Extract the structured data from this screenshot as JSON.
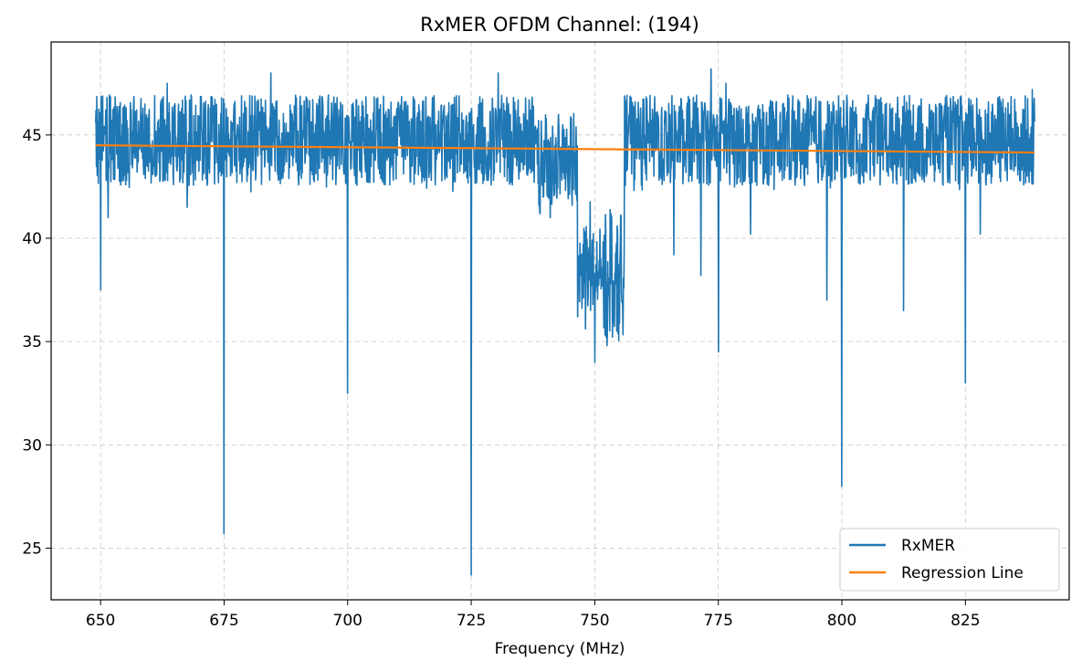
{
  "chart_data": {
    "type": "line",
    "title": "RxMER OFDM Channel: (194)",
    "xlabel": "Frequency (MHz)",
    "ylabel": "",
    "xlim": [
      640,
      846
    ],
    "ylim": [
      22.5,
      49.5
    ],
    "xticks": [
      650,
      675,
      700,
      725,
      750,
      775,
      800,
      825
    ],
    "yticks": [
      25,
      30,
      35,
      40,
      45
    ],
    "grid": true,
    "legend_position": "bottom-right",
    "colors": {
      "rxmer": "#1f77b4",
      "regression": "#ff7f0e"
    },
    "series": [
      {
        "name": "RxMER",
        "x_range": [
          649,
          839
        ],
        "baseline": 44.5,
        "upper_band": 46.5,
        "lower_band": 43.0,
        "dips": [
          {
            "x": 650.0,
            "y": 37.5
          },
          {
            "x": 651.5,
            "y": 41.0
          },
          {
            "x": 667.5,
            "y": 41.5
          },
          {
            "x": 675.0,
            "y": 25.7
          },
          {
            "x": 700.0,
            "y": 32.5
          },
          {
            "x": 725.0,
            "y": 23.7
          },
          {
            "x": 741.0,
            "y": 41.0
          },
          {
            "x": 746.5,
            "y": 36.2
          },
          {
            "x": 750.0,
            "y": 34.0
          },
          {
            "x": 752.5,
            "y": 34.8
          },
          {
            "x": 766.0,
            "y": 39.2
          },
          {
            "x": 771.5,
            "y": 38.2
          },
          {
            "x": 775.0,
            "y": 34.5
          },
          {
            "x": 781.5,
            "y": 40.2
          },
          {
            "x": 797.0,
            "y": 37.0
          },
          {
            "x": 800.0,
            "y": 28.0
          },
          {
            "x": 812.5,
            "y": 36.5
          },
          {
            "x": 825.0,
            "y": 33.0
          },
          {
            "x": 828.0,
            "y": 40.2
          }
        ],
        "peaks": [
          {
            "x": 663.5,
            "y": 47.5
          },
          {
            "x": 684.5,
            "y": 48.0
          },
          {
            "x": 730.5,
            "y": 48.0
          },
          {
            "x": 773.5,
            "y": 48.2
          },
          {
            "x": 776.5,
            "y": 47.5
          },
          {
            "x": 838.5,
            "y": 47.2
          }
        ],
        "notch_region": {
          "x_start": 746.5,
          "x_end": 756.0,
          "level_min": 35.0,
          "level_max": 40.5
        }
      },
      {
        "name": "Regression Line",
        "x": [
          649,
          839
        ],
        "y": [
          44.5,
          44.15
        ]
      }
    ]
  }
}
